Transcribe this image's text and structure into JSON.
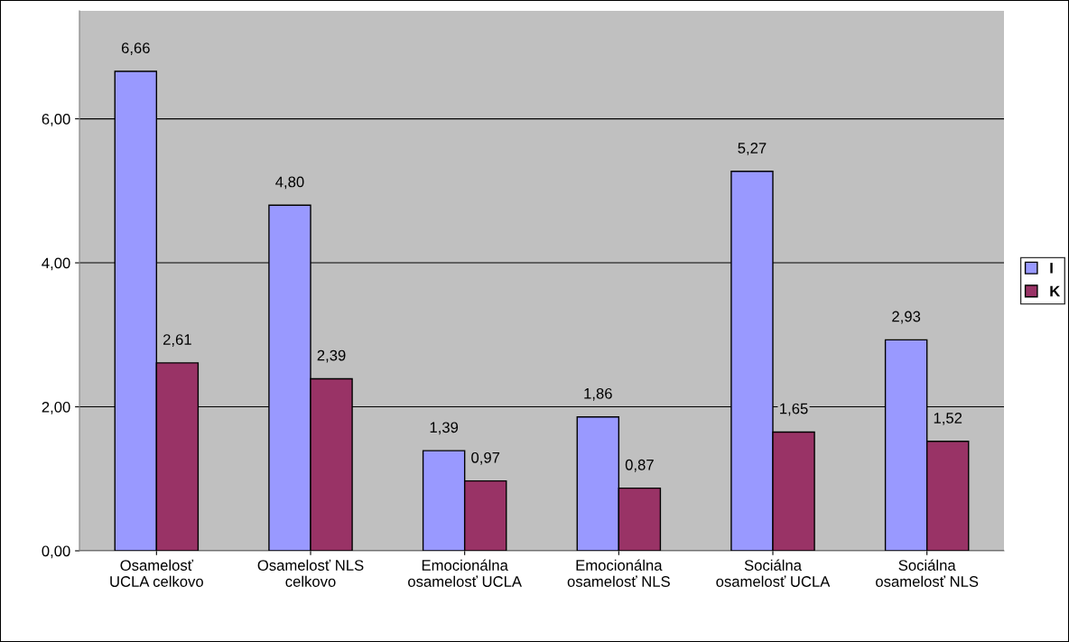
{
  "chart_data": {
    "type": "bar",
    "categories": [
      "Osamelosť\nUCLA celkovo",
      "Osamelosť NLS\ncelkovo",
      "Emocionálna\nosamelosť UCLA",
      "Emocionálna\nosamelosť NLS",
      "Sociálna\nosamelosť UCLA",
      "Sociálna\nosamelosť NLS"
    ],
    "series": [
      {
        "name": "I",
        "color": "#9999ff",
        "values": [
          6.66,
          4.8,
          1.39,
          1.86,
          5.27,
          2.93
        ],
        "value_labels": [
          "6,66",
          "4,80",
          "1,39",
          "1,86",
          "5,27",
          "2,93"
        ]
      },
      {
        "name": "K",
        "color": "#993366",
        "values": [
          2.61,
          2.39,
          0.97,
          0.87,
          1.65,
          1.52
        ],
        "value_labels": [
          "2,61",
          "2,39",
          "0,97",
          "0,87",
          "1,65",
          "1,52"
        ]
      }
    ],
    "ylim": [
      0,
      7.5
    ],
    "yticks": [
      {
        "value": 0,
        "label": "0,00"
      },
      {
        "value": 2,
        "label": "2,00"
      },
      {
        "value": 4,
        "label": "4,00"
      },
      {
        "value": 6,
        "label": "6,00"
      }
    ],
    "grid": "y",
    "legend": "right"
  }
}
